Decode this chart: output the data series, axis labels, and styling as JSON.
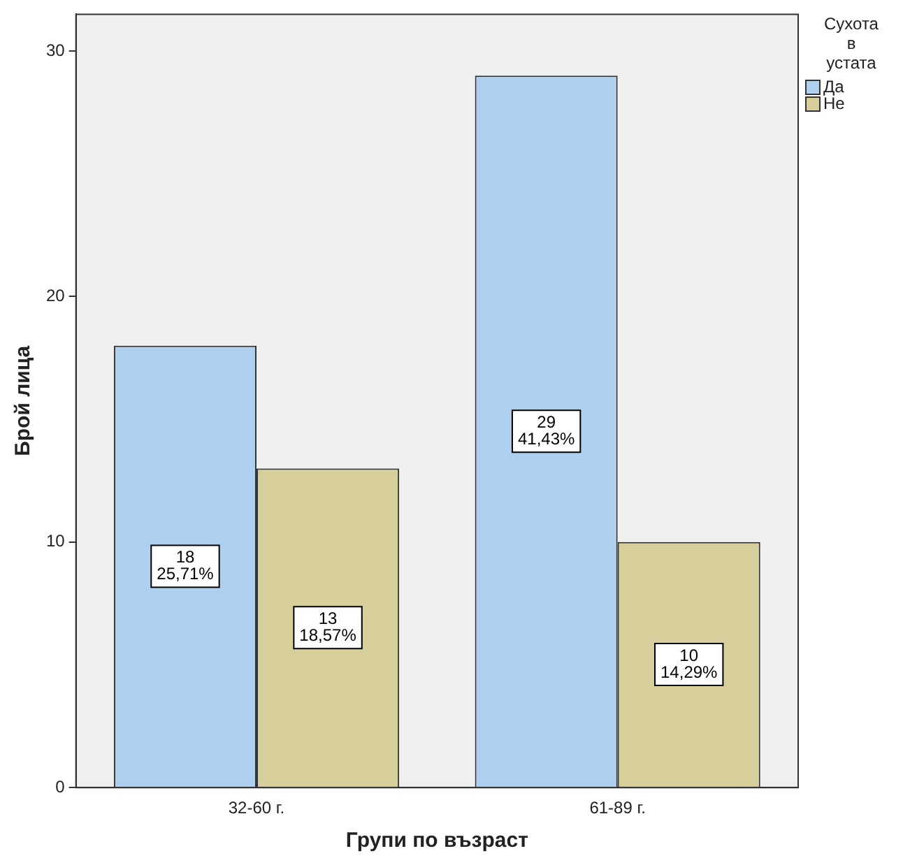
{
  "chart_data": {
    "type": "bar",
    "xlabel": "Групи по възраст",
    "ylabel": "Брой лица",
    "legend_title": "Сухота в устата",
    "categories": [
      "32-60 г.",
      "61-89 г."
    ],
    "series": [
      {
        "name": "Да",
        "color": "#aecfee",
        "values": [
          18,
          29
        ],
        "value_labels": [
          "18\n25,71%",
          "29\n41,43%"
        ]
      },
      {
        "name": "Не",
        "color": "#d6cf9b",
        "values": [
          13,
          10
        ],
        "value_labels": [
          "13\n18,57%",
          "10\n14,29%"
        ]
      }
    ],
    "ylim": [
      0,
      31.5
    ],
    "yticks": [
      0,
      10,
      20,
      30
    ],
    "grid": false,
    "legend": "top right"
  }
}
